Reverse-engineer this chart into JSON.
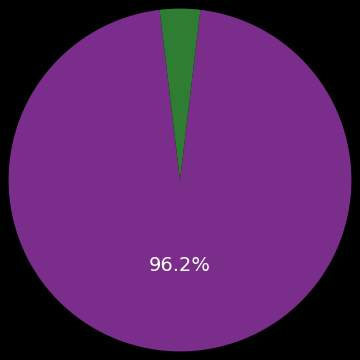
{
  "slices": [
    96.2,
    3.8
  ],
  "colors": [
    "#7b2d8b",
    "#2e7d32"
  ],
  "label_large": "96.2%",
  "label_large_color": "#ffffff",
  "label_large_fontsize": 14,
  "background_color": "#000000",
  "figsize": [
    3.6,
    3.6
  ],
  "dpi": 100
}
